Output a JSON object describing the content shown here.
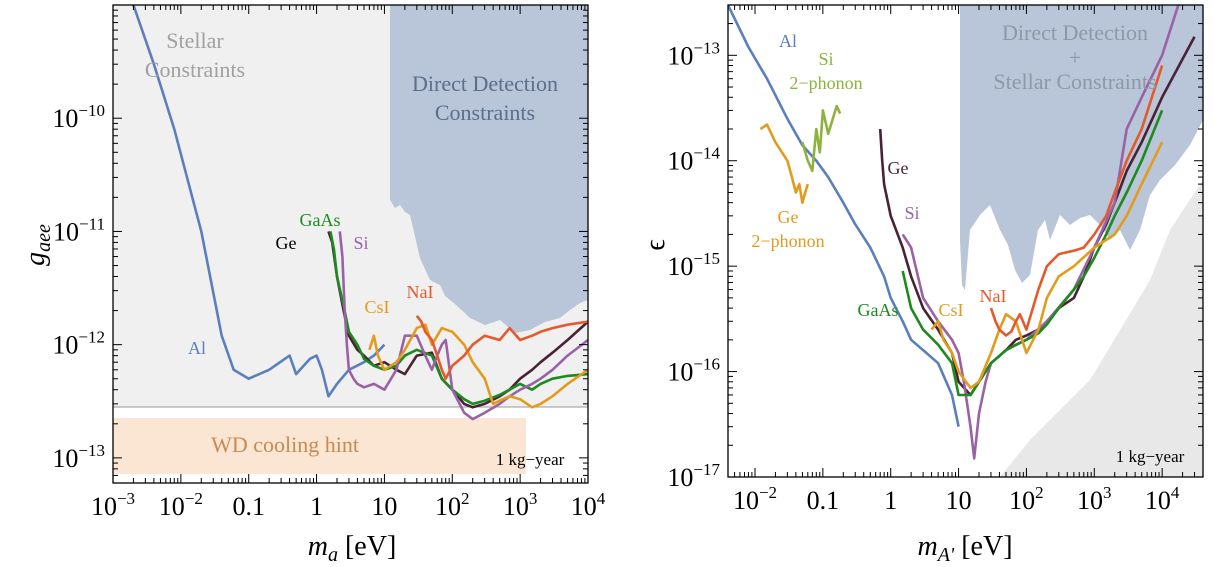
{
  "chart_data": [
    {
      "type": "line",
      "xlabel": "m_a [eV]",
      "ylabel": "g_aee",
      "x_scale": "log",
      "y_scale": "log",
      "xlim": [
        0.001,
        10000
      ],
      "ylim": [
        6e-14,
        1e-09
      ],
      "x_ticks": [
        "10^-3",
        "10^-2",
        "0.1",
        "1",
        "10",
        "10^2",
        "10^3",
        "10^4"
      ],
      "y_ticks": [
        "10^-13",
        "10^-12",
        "10^-11",
        "10^-10"
      ],
      "exposure_label": "1 kg−year",
      "regions": [
        {
          "label_lines": [
            "Stellar",
            "Constraints"
          ],
          "color": "#efefef",
          "label_color": "#a0a0a0"
        },
        {
          "label_lines": [
            "Direct Detection",
            "Constraints"
          ],
          "color": "#b9c5d9",
          "label_color": "#5a6f8a"
        },
        {
          "label_lines": [
            "WD cooling hint"
          ],
          "color": "#fbe6d4",
          "label_color": "#c98a52"
        }
      ],
      "series": [
        {
          "name": "Al",
          "color": "#5b7fbd",
          "x": [
            0.002,
            0.004,
            0.008,
            0.02,
            0.04,
            0.06,
            0.1,
            0.2,
            0.4,
            0.5,
            0.8,
            1.0,
            1.2,
            1.5,
            2,
            3,
            5,
            7,
            10
          ],
          "y": [
            1e-09,
            3e-10,
            8e-11,
            1e-11,
            1.2e-12,
            6e-13,
            5e-13,
            6e-13,
            8e-13,
            5.5e-13,
            7.5e-13,
            8e-13,
            6e-13,
            3.5e-13,
            4.5e-13,
            6e-13,
            7e-13,
            8e-13,
            1e-12
          ]
        },
        {
          "name": "Ge",
          "color": "#4a2236",
          "x": [
            1.5,
            1.7,
            2,
            2.5,
            3,
            4,
            5,
            7,
            10,
            15,
            20,
            30,
            50,
            70,
            100,
            150,
            200,
            300,
            500,
            700,
            1000,
            1500,
            2000,
            3000,
            5000,
            10000
          ],
          "y": [
            1e-11,
            8e-12,
            4e-12,
            2e-12,
            1.2e-12,
            9e-13,
            8e-13,
            6.5e-13,
            7e-13,
            6e-13,
            5.5e-13,
            8e-13,
            8.5e-13,
            5e-13,
            4e-13,
            3e-13,
            2.8e-13,
            3e-13,
            3.5e-13,
            4e-13,
            5e-13,
            6e-13,
            7e-13,
            8.5e-13,
            1.1e-12,
            1.6e-12
          ]
        },
        {
          "name": "GaAs",
          "color": "#1e8a1e",
          "x": [
            1.6,
            1.8,
            2,
            2.5,
            3,
            4,
            5,
            7,
            10,
            15,
            20,
            30,
            50,
            70,
            100,
            150,
            200,
            300,
            500,
            700,
            1000,
            1500,
            2000,
            3000,
            5000,
            10000
          ],
          "y": [
            1e-11,
            7e-12,
            4e-12,
            2.2e-12,
            1.3e-12,
            1e-12,
            7.5e-13,
            6.5e-13,
            6e-13,
            6.5e-13,
            8e-13,
            9e-13,
            8e-13,
            5e-13,
            4e-13,
            3.3e-13,
            3e-13,
            3.2e-13,
            3.6e-13,
            4e-13,
            4.5e-13,
            4e-13,
            4.5e-13,
            5e-13,
            5.3e-13,
            5.5e-13
          ]
        },
        {
          "name": "Si",
          "color": "#9a62a6",
          "x": [
            2.2,
            2.4,
            2.6,
            2.8,
            3,
            3.5,
            4,
            5,
            7,
            10,
            15,
            20,
            30,
            40,
            50,
            60,
            70,
            80,
            100,
            150,
            200,
            300,
            500,
            700,
            1000,
            1500,
            2000,
            3000,
            5000,
            10000
          ],
          "y": [
            1e-11,
            6e-12,
            2e-12,
            1e-12,
            6e-13,
            5e-13,
            4.5e-13,
            4.2e-13,
            4.5e-13,
            4e-13,
            6e-13,
            1.2e-12,
            1.2e-12,
            8e-13,
            6e-13,
            8e-13,
            1e-12,
            1.1e-12,
            4e-13,
            2.5e-13,
            2.2e-13,
            2.5e-13,
            3e-13,
            3.5e-13,
            4e-13,
            4.5e-13,
            5e-13,
            6e-13,
            8e-13,
            1.1e-12
          ]
        },
        {
          "name": "CsI",
          "color": "#e39b1e",
          "x": [
            6,
            7,
            8,
            10,
            15,
            20,
            30,
            40,
            50,
            70,
            100,
            150,
            200,
            300,
            400,
            500,
            700,
            1000,
            1500,
            2000,
            3000,
            5000,
            10000
          ],
          "y": [
            9e-13,
            1.2e-12,
            8e-13,
            6e-13,
            7e-13,
            9e-13,
            1.4e-12,
            1.5e-12,
            1e-12,
            1.4e-12,
            1.3e-12,
            1e-12,
            7e-13,
            5e-13,
            3e-13,
            3.2e-13,
            3.5e-13,
            3.3e-13,
            2.8e-13,
            3e-13,
            3.5e-13,
            4.5e-13,
            6e-13
          ]
        },
        {
          "name": "NaI",
          "color": "#e35a2c",
          "x": [
            30,
            35,
            40,
            50,
            60,
            70,
            80,
            100,
            150,
            200,
            300,
            500,
            700,
            1000,
            1500,
            2000,
            3000,
            5000,
            10000
          ],
          "y": [
            1.8e-12,
            1.6e-12,
            1.3e-12,
            1.1e-12,
            8e-13,
            6e-13,
            5e-13,
            6.5e-13,
            8e-13,
            1e-12,
            1.2e-12,
            1.1e-12,
            1.4e-12,
            1.1e-12,
            1.2e-12,
            1.3e-12,
            1.4e-12,
            1.5e-12,
            1.6e-12
          ]
        }
      ]
    },
    {
      "type": "line",
      "xlabel": "m_A' [eV]",
      "ylabel": "ϵ",
      "x_scale": "log",
      "y_scale": "log",
      "xlim": [
        0.004,
        40000
      ],
      "ylim": [
        1e-17,
        3e-13
      ],
      "x_ticks": [
        "10^-2",
        "0.1",
        "1",
        "10",
        "10^2",
        "10^3",
        "10^4"
      ],
      "y_ticks": [
        "10^-17",
        "10^-16",
        "10^-15",
        "10^-14",
        "10^-13"
      ],
      "exposure_label": "1 kg−year",
      "regions": [
        {
          "label_lines": [
            "Direct Detection",
            "+",
            "Stellar Constraints"
          ],
          "color": "#b9c5d9",
          "label_color": "#8e99a8"
        }
      ],
      "series": [
        {
          "name": "Al",
          "color": "#5b7fbd",
          "x": [
            0.004,
            0.008,
            0.015,
            0.03,
            0.05,
            0.08,
            0.12,
            0.2,
            0.3,
            0.5,
            0.8,
            1.0,
            1.5,
            2,
            3,
            5,
            8,
            10
          ],
          "y": [
            3e-13,
            1.2e-13,
            6e-14,
            2.5e-14,
            1.4e-14,
            1e-14,
            7e-15,
            4e-15,
            2.5e-15,
            1.5e-15,
            8e-16,
            5e-16,
            3e-16,
            2e-16,
            1.6e-16,
            1.2e-16,
            6e-17,
            3e-17
          ]
        },
        {
          "name": "Si 2−phonon",
          "color": "#8db33e",
          "x": [
            0.05,
            0.06,
            0.07,
            0.08,
            0.09,
            0.1,
            0.12,
            0.14,
            0.16,
            0.18
          ],
          "y": [
            1.5e-14,
            1e-14,
            8e-15,
            2e-14,
            1.2e-14,
            3e-14,
            1.8e-14,
            2.5e-14,
            3.3e-14,
            2.8e-14
          ]
        },
        {
          "name": "Ge 2−phonon",
          "color": "#e39b1e",
          "x": [
            0.012,
            0.015,
            0.02,
            0.025,
            0.03,
            0.035,
            0.04,
            0.045,
            0.05,
            0.055,
            0.06
          ],
          "y": [
            2e-14,
            2.2e-14,
            1.5e-14,
            1.2e-14,
            1e-14,
            7e-15,
            5e-15,
            6e-15,
            4e-15,
            5e-15,
            6e-15
          ]
        },
        {
          "name": "Ge",
          "color": "#4a2236",
          "x": [
            0.7,
            0.75,
            0.8,
            1,
            1.5,
            2,
            3,
            5,
            8,
            10,
            15,
            20,
            30,
            50,
            70,
            100,
            150,
            200,
            300,
            500,
            700,
            1000,
            1500,
            2000,
            3000,
            5000,
            10000,
            30000
          ],
          "y": [
            2e-14,
            1e-14,
            6e-15,
            3e-15,
            1.5e-15,
            8e-16,
            4e-16,
            2.5e-16,
            1.5e-16,
            8e-17,
            6e-17,
            8e-17,
            1.2e-16,
            1.6e-16,
            2e-16,
            2.2e-16,
            2.5e-16,
            3e-16,
            4e-16,
            5e-16,
            8e-16,
            1.5e-15,
            2.5e-15,
            4e-15,
            8e-15,
            1.5e-14,
            4e-14,
            1.5e-13
          ]
        },
        {
          "name": "Si",
          "color": "#9a62a6",
          "x": [
            1.5,
            2,
            3,
            5,
            8,
            10,
            12,
            15,
            17,
            20,
            25,
            30,
            50,
            100,
            200,
            500,
            1000,
            2000,
            3000,
            5000,
            10000,
            20000
          ],
          "y": [
            2e-15,
            1.5e-15,
            5e-16,
            3e-16,
            2e-16,
            1.5e-16,
            8e-17,
            3e-17,
            1.5e-17,
            4e-17,
            8e-17,
            1.2e-16,
            1.6e-16,
            2e-16,
            3e-16,
            6e-16,
            1.5e-15,
            4e-15,
            2e-14,
            4e-14,
            1e-13,
            4e-13
          ]
        },
        {
          "name": "GaAs",
          "color": "#1e8a1e",
          "x": [
            1.5,
            2,
            3,
            5,
            8,
            10,
            15,
            20,
            30,
            50,
            70,
            100,
            150,
            200,
            300,
            500,
            700,
            1000,
            1500,
            2000,
            3000,
            5000,
            10000
          ],
          "y": [
            9e-16,
            4e-16,
            2.5e-16,
            1.8e-16,
            1.2e-16,
            6e-17,
            6e-17,
            8e-17,
            1.2e-16,
            1.6e-16,
            1.8e-16,
            2e-16,
            2.3e-16,
            2.8e-16,
            4e-16,
            6e-16,
            8e-16,
            1.2e-15,
            2e-15,
            3e-15,
            5e-15,
            1e-14,
            3e-14
          ]
        },
        {
          "name": "CsI",
          "color": "#e39b1e",
          "x": [
            4,
            5,
            6,
            8,
            10,
            15,
            20,
            30,
            40,
            50,
            70,
            100,
            150,
            200,
            300,
            500,
            1000,
            2000,
            3000,
            5000,
            10000
          ],
          "y": [
            2.5e-16,
            3e-16,
            2e-16,
            1.5e-16,
            1e-16,
            7e-17,
            8e-17,
            1.5e-16,
            2.5e-16,
            3.5e-16,
            3e-16,
            1.5e-16,
            2.5e-16,
            5e-16,
            8e-16,
            1e-15,
            1.5e-15,
            2e-15,
            3e-15,
            6e-15,
            1.5e-14
          ]
        },
        {
          "name": "NaI",
          "color": "#e35a2c",
          "x": [
            30,
            35,
            40,
            50,
            60,
            70,
            80,
            100,
            150,
            200,
            300,
            500,
            700,
            1000,
            1500,
            2000,
            3000,
            5000,
            10000
          ],
          "y": [
            4e-16,
            3e-16,
            2.5e-16,
            2.2e-16,
            2.4e-16,
            3e-16,
            3.5e-16,
            2.5e-16,
            6e-16,
            1e-15,
            1.3e-15,
            1.4e-15,
            1.5e-15,
            2e-15,
            3e-15,
            5e-15,
            1e-14,
            2e-14,
            8e-14
          ]
        }
      ]
    }
  ]
}
